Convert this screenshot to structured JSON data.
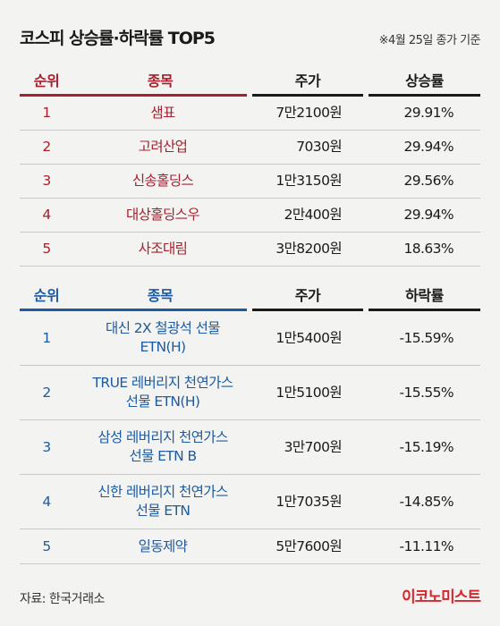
{
  "title": "코스피 상승률·하락률 TOP5",
  "note": "※4월 25일 종가 기준",
  "rise": {
    "headers": [
      "순위",
      "종목",
      "주가",
      "상승률"
    ],
    "rows": [
      {
        "rank": "1",
        "name1": "샘표",
        "name2": "",
        "price": "7만2100원",
        "rate": "29.91%"
      },
      {
        "rank": "2",
        "name1": "고려산업",
        "name2": "",
        "price": "7030원",
        "rate": "29.94%"
      },
      {
        "rank": "3",
        "name1": "신송홀딩스",
        "name2": "",
        "price": "1만3150원",
        "rate": "29.56%"
      },
      {
        "rank": "4",
        "name1": "대상홀딩스우",
        "name2": "",
        "price": "2만400원",
        "rate": "29.94%"
      },
      {
        "rank": "5",
        "name1": "사조대림",
        "name2": "",
        "price": "3만8200원",
        "rate": "18.63%"
      }
    ]
  },
  "fall": {
    "headers": [
      "순위",
      "종목",
      "주가",
      "하락률"
    ],
    "rows": [
      {
        "rank": "1",
        "name1": "대신 2X 철광석 선물",
        "name2": "ETN(H)",
        "price": "1만5400원",
        "rate": "-15.59%"
      },
      {
        "rank": "2",
        "name1": "TRUE 레버리지 천연가스",
        "name2": "선물 ETN(H)",
        "price": "1만5100원",
        "rate": "-15.55%"
      },
      {
        "rank": "3",
        "name1": "삼성 레버리지 천연가스",
        "name2": "선물 ETN B",
        "price": "3만700원",
        "rate": "-15.19%"
      },
      {
        "rank": "4",
        "name1": "신한 레버리지 천연가스",
        "name2": "선물 ETN",
        "price": "1만7035원",
        "rate": "-14.85%"
      },
      {
        "rank": "5",
        "name1": "일동제약",
        "name2": "",
        "price": "5만7600원",
        "rate": "-11.11%"
      }
    ]
  },
  "source": "자료: 한국거래소",
  "logo": "이코노미스트",
  "colors": {
    "rise": "#a7202e",
    "fall": "#1e5aa0",
    "logo": "#d6262c",
    "background": "#f3f3f1"
  }
}
